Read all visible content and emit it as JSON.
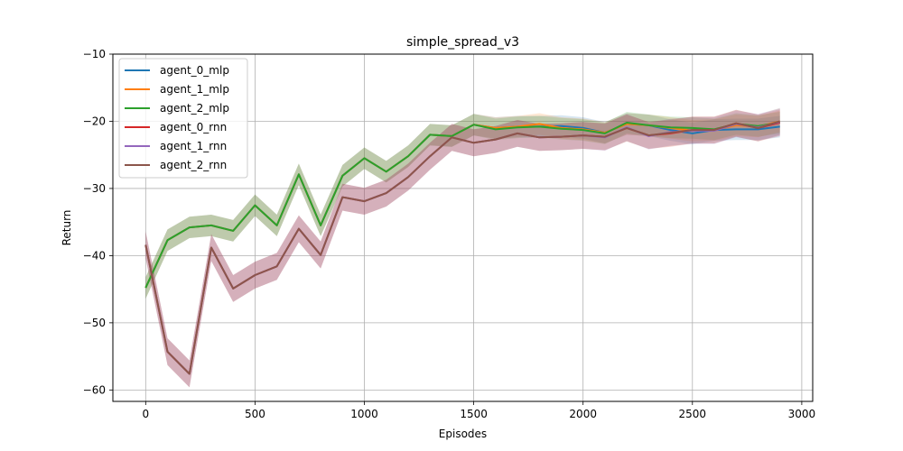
{
  "chart_data": {
    "type": "line",
    "title": "simple_spread_v3",
    "xlabel": "Episodes",
    "ylabel": "Return",
    "xlim": [
      -150,
      3050
    ],
    "ylim": [
      -61.7,
      -10
    ],
    "xticks": [
      0,
      500,
      1000,
      1500,
      2000,
      2500,
      3000
    ],
    "xtick_labels": [
      "0",
      "500",
      "1000",
      "1500",
      "2000",
      "2500",
      "3000"
    ],
    "yticks": [
      -60,
      -50,
      -40,
      -30,
      -20,
      -10
    ],
    "ytick_labels": [
      "−60",
      "−50",
      "−40",
      "−30",
      "−20",
      "−10"
    ],
    "grid": true,
    "legend_position": "top-left",
    "x": [
      0,
      100,
      200,
      300,
      400,
      500,
      600,
      700,
      800,
      900,
      1000,
      1100,
      1200,
      1300,
      1400,
      1500,
      1600,
      1700,
      1800,
      1900,
      2000,
      2100,
      2200,
      2300,
      2400,
      2500,
      2600,
      2700,
      2800,
      2900
    ],
    "series": [
      {
        "name": "agent_0_mlp",
        "color": "#1f77b4",
        "values": [
          -44.8,
          -37.7,
          -35.8,
          -35.5,
          -36.3,
          -32.5,
          -35.5,
          -27.9,
          -35.5,
          -28.1,
          -25.5,
          -27.5,
          -25.2,
          -22.0,
          -22.2,
          -20.5,
          -21.0,
          -20.8,
          -20.8,
          -20.7,
          -21.0,
          -21.7,
          -20.4,
          -20.6,
          -21.3,
          -21.8,
          -21.3,
          -21.2,
          -21.2,
          -20.8
        ],
        "band": 1.6
      },
      {
        "name": "agent_1_mlp",
        "color": "#ff7f0e",
        "values": [
          -44.8,
          -37.7,
          -35.8,
          -35.5,
          -36.3,
          -32.5,
          -35.5,
          -27.9,
          -35.5,
          -28.1,
          -25.5,
          -27.5,
          -25.2,
          -22.0,
          -22.2,
          -20.5,
          -21.0,
          -20.8,
          -20.4,
          -21.0,
          -21.2,
          -21.7,
          -20.4,
          -20.6,
          -21.0,
          -21.4,
          -21.3,
          -20.6,
          -20.8,
          -20.0
        ],
        "band": 1.6
      },
      {
        "name": "agent_2_mlp",
        "color": "#2ca02c",
        "values": [
          -44.8,
          -37.7,
          -35.8,
          -35.5,
          -36.3,
          -32.5,
          -35.5,
          -27.9,
          -35.5,
          -28.1,
          -25.5,
          -27.5,
          -25.2,
          -22.0,
          -22.2,
          -20.5,
          -21.2,
          -20.9,
          -20.8,
          -21.1,
          -21.3,
          -21.8,
          -20.2,
          -20.6,
          -20.9,
          -21.0,
          -21.2,
          -20.4,
          -20.7,
          -20.2
        ],
        "band": 1.6
      },
      {
        "name": "agent_0_rnn",
        "color": "#d62728",
        "values": [
          -38.4,
          -54.3,
          -57.6,
          -38.8,
          -44.9,
          -42.9,
          -41.6,
          -36.0,
          -39.9,
          -31.3,
          -31.9,
          -30.7,
          -28.3,
          -25.2,
          -22.4,
          -23.2,
          -22.7,
          -21.8,
          -22.4,
          -22.3,
          -22.1,
          -22.3,
          -21.0,
          -22.1,
          -21.8,
          -21.3,
          -21.3,
          -20.3,
          -21.0,
          -20.2
        ],
        "band": 2.0
      },
      {
        "name": "agent_1_rnn",
        "color": "#9467bd",
        "values": [
          -38.4,
          -54.3,
          -57.6,
          -38.8,
          -44.9,
          -42.9,
          -41.6,
          -36.0,
          -39.9,
          -31.3,
          -31.9,
          -30.7,
          -28.3,
          -25.2,
          -22.4,
          -23.2,
          -22.7,
          -21.8,
          -22.4,
          -22.3,
          -22.1,
          -22.4,
          -20.9,
          -22.2,
          -21.6,
          -21.4,
          -21.4,
          -20.4,
          -20.9,
          -20.1
        ],
        "band": 2.0
      },
      {
        "name": "agent_2_rnn",
        "color": "#8c564b",
        "values": [
          -38.4,
          -54.3,
          -57.6,
          -38.8,
          -44.9,
          -42.9,
          -41.6,
          -36.0,
          -39.9,
          -31.3,
          -31.9,
          -30.7,
          -28.3,
          -25.2,
          -22.4,
          -23.2,
          -22.7,
          -21.8,
          -22.4,
          -22.3,
          -22.1,
          -22.3,
          -21.0,
          -22.1,
          -21.7,
          -21.3,
          -21.3,
          -20.3,
          -21.0,
          -20.0
        ],
        "band": 2.0
      }
    ]
  }
}
